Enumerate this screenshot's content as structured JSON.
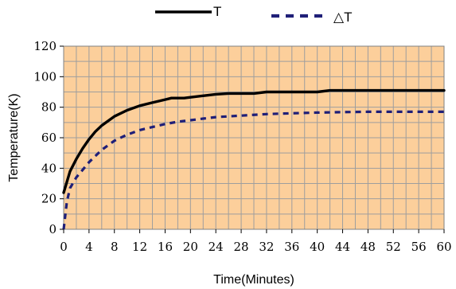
{
  "chart_data": {
    "type": "line",
    "xlabel": "Time(Minutes)",
    "ylabel": "Temperature(K)",
    "xlim": [
      0,
      60
    ],
    "ylim": [
      0,
      120
    ],
    "x_ticks": [
      0,
      4,
      8,
      12,
      16,
      20,
      24,
      28,
      32,
      36,
      40,
      44,
      48,
      52,
      56,
      60
    ],
    "y_ticks": [
      0,
      20,
      40,
      60,
      80,
      100,
      120
    ],
    "grid": true,
    "plot_background": "#FCCF9B",
    "grid_color": "#9E9E9E",
    "legend_position": "top-center",
    "series": [
      {
        "name": "T",
        "style": "solid",
        "color": "#000000",
        "x": [
          0,
          1,
          2,
          3,
          4,
          5,
          6,
          8,
          10,
          12,
          14,
          16,
          17,
          19,
          20,
          22,
          24,
          26,
          28,
          30,
          32,
          34,
          36,
          38,
          40,
          42,
          44,
          48,
          52,
          56,
          60
        ],
        "y": [
          24,
          38,
          46,
          53,
          59,
          64,
          68,
          74,
          78,
          81,
          83,
          85,
          86,
          86,
          86.5,
          87.5,
          88.5,
          89,
          89,
          89,
          90,
          90,
          90,
          90,
          90,
          91,
          91,
          91,
          91,
          91,
          91
        ]
      },
      {
        "name": "△T",
        "style": "dashed",
        "color": "#1F1F78",
        "x": [
          0,
          0.5,
          1,
          2,
          3,
          4,
          5,
          6,
          8,
          10,
          12,
          14,
          16,
          18,
          20,
          22,
          24,
          28,
          32,
          36,
          40,
          44,
          48,
          52,
          56,
          60
        ],
        "y": [
          0,
          18,
          27,
          34,
          39,
          44,
          48,
          52,
          58,
          62,
          65,
          67,
          69,
          70.5,
          71.5,
          72.5,
          73.5,
          74.5,
          75.5,
          76,
          76.5,
          76.8,
          77,
          77,
          77,
          77
        ]
      }
    ]
  }
}
